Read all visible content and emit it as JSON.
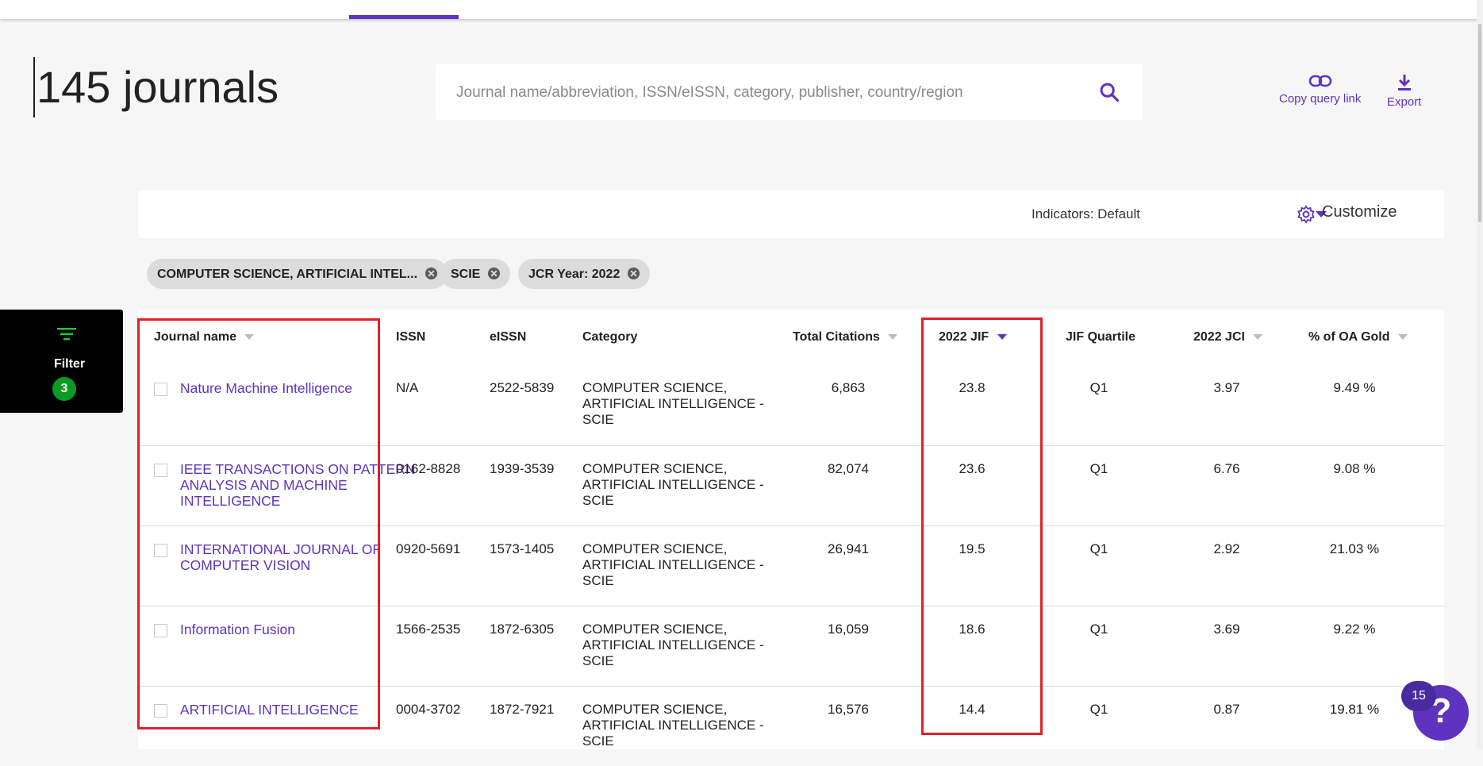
{
  "page": {
    "title": "145 journals"
  },
  "search": {
    "placeholder": "Journal name/abbreviation, ISSN/eISSN, category, publisher, country/region",
    "value": ""
  },
  "actions": {
    "copy_query_link": "Copy query link",
    "export": "Export"
  },
  "toolbar": {
    "indicators_label": "Indicators: Default",
    "customize_label": "Customize"
  },
  "chips": [
    {
      "label": "COMPUTER SCIENCE, ARTIFICIAL INTEL..."
    },
    {
      "label": "SCIE"
    },
    {
      "label": "JCR Year: 2022"
    }
  ],
  "filter": {
    "label": "Filter",
    "count": "3"
  },
  "table": {
    "columns": {
      "journal_name": "Journal name",
      "issn": "ISSN",
      "eissn": "eISSN",
      "category": "Category",
      "total_citations": "Total Citations",
      "jif": "2022 JIF",
      "jif_quartile": "JIF Quartile",
      "jci": "2022 JCI",
      "oa_gold": "% of OA Gold"
    },
    "rows": [
      {
        "name": "Nature Machine Intelligence",
        "issn": "N/A",
        "eissn": "2522-5839",
        "category": "COMPUTER SCIENCE, ARTIFICIAL INTELLIGENCE - SCIE",
        "citations": "6,863",
        "jif": "23.8",
        "quartile": "Q1",
        "jci": "3.97",
        "oa": "9.49 %"
      },
      {
        "name": "IEEE TRANSACTIONS ON PATTERN ANALYSIS AND MACHINE INTELLIGENCE",
        "issn": "0162-8828",
        "eissn": "1939-3539",
        "category": "COMPUTER SCIENCE, ARTIFICIAL INTELLIGENCE - SCIE",
        "citations": "82,074",
        "jif": "23.6",
        "quartile": "Q1",
        "jci": "6.76",
        "oa": "9.08 %"
      },
      {
        "name": "INTERNATIONAL JOURNAL OF COMPUTER VISION",
        "issn": "0920-5691",
        "eissn": "1573-1405",
        "category": "COMPUTER SCIENCE, ARTIFICIAL INTELLIGENCE - SCIE",
        "citations": "26,941",
        "jif": "19.5",
        "quartile": "Q1",
        "jci": "2.92",
        "oa": "21.03 %"
      },
      {
        "name": "Information Fusion",
        "issn": "1566-2535",
        "eissn": "1872-6305",
        "category": "COMPUTER SCIENCE, ARTIFICIAL INTELLIGENCE - SCIE",
        "citations": "16,059",
        "jif": "18.6",
        "quartile": "Q1",
        "jci": "3.69",
        "oa": "9.22 %"
      },
      {
        "name": "ARTIFICIAL INTELLIGENCE",
        "issn": "0004-3702",
        "eissn": "1872-7921",
        "category": "COMPUTER SCIENCE, ARTIFICIAL INTELLIGENCE - SCIE",
        "citations": "16,576",
        "jif": "14.4",
        "quartile": "Q1",
        "jci": "0.87",
        "oa": "19.81 %"
      }
    ]
  },
  "help": {
    "badge": "15",
    "icon": "?"
  },
  "colors": {
    "accent": "#5e33bf",
    "highlight_box": "#e0202a",
    "filter_badge": "#0a9b22"
  }
}
